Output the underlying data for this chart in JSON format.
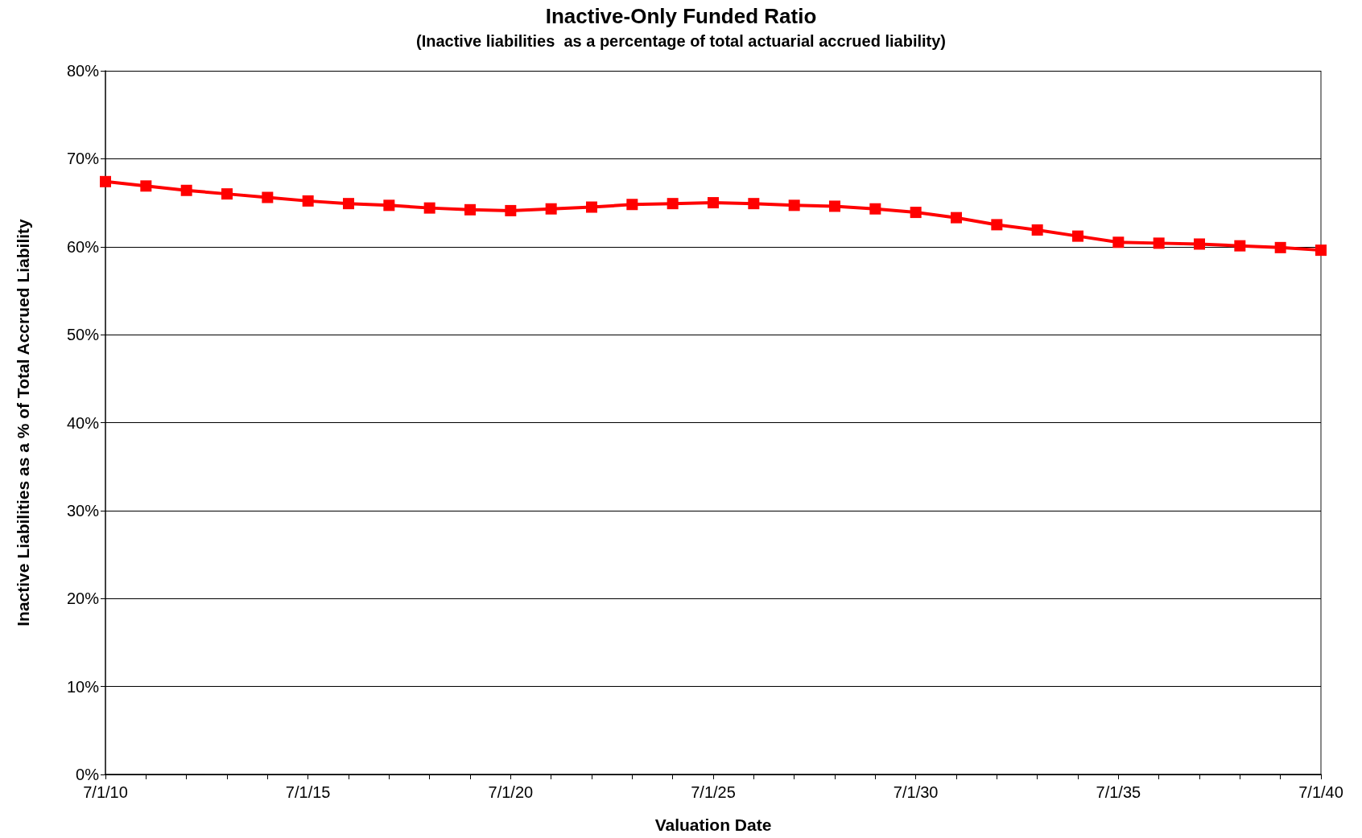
{
  "chart_data": {
    "type": "line",
    "title": "Inactive-Only Funded Ratio",
    "subtitle": "(Inactive liabilities  as a percentage of total actuarial accrued liability)",
    "xlabel": "Valuation Date",
    "ylabel": "Inactive Liabilities as a % of Total Accrued Liability",
    "categories": [
      "7/1/10",
      null,
      null,
      null,
      null,
      "7/1/15",
      null,
      null,
      null,
      null,
      "7/1/20",
      null,
      null,
      null,
      null,
      "7/1/25",
      null,
      null,
      null,
      null,
      "7/1/30",
      null,
      null,
      null,
      null,
      "7/1/35",
      null,
      null,
      null,
      null,
      "7/1/40"
    ],
    "series": [
      {
        "color": "#ff0000",
        "values": [
          67.4,
          66.9,
          66.4,
          66.0,
          65.6,
          65.2,
          64.9,
          64.7,
          64.4,
          64.2,
          64.1,
          64.3,
          64.5,
          64.8,
          64.9,
          65.0,
          64.9,
          64.7,
          64.6,
          64.3,
          63.9,
          63.3,
          62.5,
          61.9,
          61.2,
          60.5,
          60.4,
          60.3,
          60.1,
          59.9,
          59.6
        ]
      }
    ],
    "ylim": [
      0,
      80
    ],
    "yticks": [
      {
        "value": 0,
        "label": "0%"
      },
      {
        "value": 10,
        "label": "10%"
      },
      {
        "value": 20,
        "label": "20%"
      },
      {
        "value": 30,
        "label": "30%"
      },
      {
        "value": 40,
        "label": "40%"
      },
      {
        "value": 50,
        "label": "50%"
      },
      {
        "value": 60,
        "label": "60%"
      },
      {
        "value": 70,
        "label": "70%"
      },
      {
        "value": 80,
        "label": "80%"
      }
    ],
    "grid": "y",
    "marker": "square",
    "line_style": "solid"
  }
}
